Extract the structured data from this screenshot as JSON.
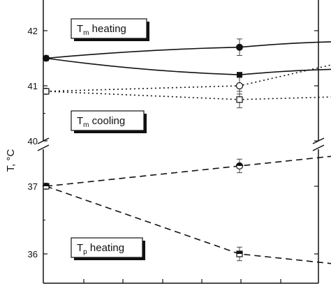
{
  "chart_data": {
    "type": "line",
    "title": "",
    "ylabel": "T, °C",
    "xlabel": "",
    "y_ticks_upper": [
      "40",
      "41",
      "42"
    ],
    "y_ticks_lower": [
      "36",
      "37"
    ],
    "ylim_upper": [
      40,
      42.4
    ],
    "ylim_lower": [
      35.8,
      37.6
    ],
    "x": [
      0,
      1,
      1.5
    ],
    "grid": false,
    "annotations": [
      {
        "main": "T",
        "sub": "m",
        "rest": " heating"
      },
      {
        "main": "T",
        "sub": "m",
        "rest": " cooling"
      },
      {
        "main": "T",
        "sub": "p",
        "rest": " heating"
      }
    ],
    "series": [
      {
        "style": "solid",
        "marker": "filled-circle",
        "x": [
          0,
          1,
          1.5
        ],
        "y": [
          41.5,
          41.7,
          41.8
        ],
        "err": [
          0,
          0.15,
          0.15
        ],
        "panel": "upper"
      },
      {
        "style": "solid",
        "marker": "filled-square",
        "x": [
          0,
          1,
          1.5
        ],
        "y": [
          41.5,
          41.2,
          41.3
        ],
        "err": [
          0,
          0,
          0
        ],
        "panel": "upper"
      },
      {
        "style": "dotted",
        "marker": "open-circle",
        "x": [
          0,
          1,
          1.5
        ],
        "y": [
          40.9,
          41.0,
          41.4
        ],
        "err": [
          0,
          0.15,
          0.15
        ],
        "panel": "upper"
      },
      {
        "style": "dotted",
        "marker": "open-square",
        "x": [
          0,
          1,
          1.5
        ],
        "y": [
          40.9,
          40.75,
          40.8
        ],
        "err": [
          0,
          0.15,
          0.1
        ],
        "panel": "upper"
      },
      {
        "style": "dashed",
        "marker": "half-circle",
        "x": [
          0,
          1,
          1.5
        ],
        "y": [
          37.0,
          37.3,
          37.45
        ],
        "err": [
          0,
          0.1,
          0.1
        ],
        "panel": "lower"
      },
      {
        "style": "dashed",
        "marker": "half-square",
        "x": [
          0,
          1,
          1.5
        ],
        "y": [
          37.0,
          36.0,
          35.85
        ],
        "err": [
          0,
          0.1,
          0.1
        ],
        "panel": "lower"
      }
    ]
  }
}
